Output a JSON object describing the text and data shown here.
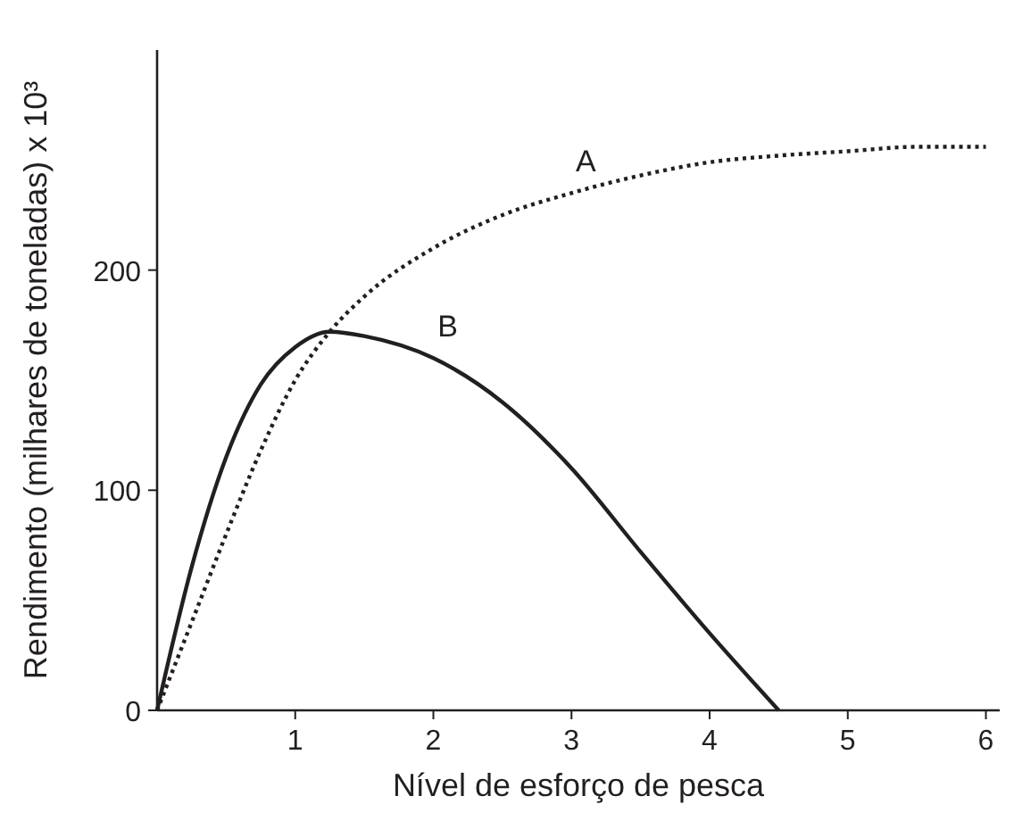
{
  "chart_data": {
    "type": "line",
    "xlabel": "Nível de esforço de pesca",
    "ylabel": "Rendimento (milhares de toneladas) x 10³",
    "xlim": [
      0,
      6.1
    ],
    "ylim": [
      0,
      300
    ],
    "xticks": [
      1,
      2,
      3,
      4,
      5,
      6
    ],
    "yticks": [
      0,
      100,
      200
    ],
    "grid": false,
    "marker": "none",
    "series": [
      {
        "name": "A",
        "color": "#231f20",
        "line_style": "dotted",
        "x": [
          0,
          0.25,
          0.5,
          0.75,
          1,
          1.25,
          1.5,
          2,
          2.5,
          3,
          3.5,
          4,
          4.5,
          5,
          5.5,
          6
        ],
        "values": [
          0,
          40,
          80,
          118,
          150,
          172,
          188,
          210,
          225,
          235,
          243,
          249,
          252,
          254,
          256,
          256
        ]
      },
      {
        "name": "B",
        "color": "#231f20",
        "line_style": "solid",
        "x": [
          0,
          0.25,
          0.5,
          0.75,
          1,
          1.25,
          1.5,
          2,
          2.5,
          3,
          3.5,
          4,
          4.5
        ],
        "values": [
          0,
          65,
          115,
          148,
          165,
          172,
          170,
          160,
          140,
          110,
          72,
          35,
          0
        ]
      }
    ]
  }
}
